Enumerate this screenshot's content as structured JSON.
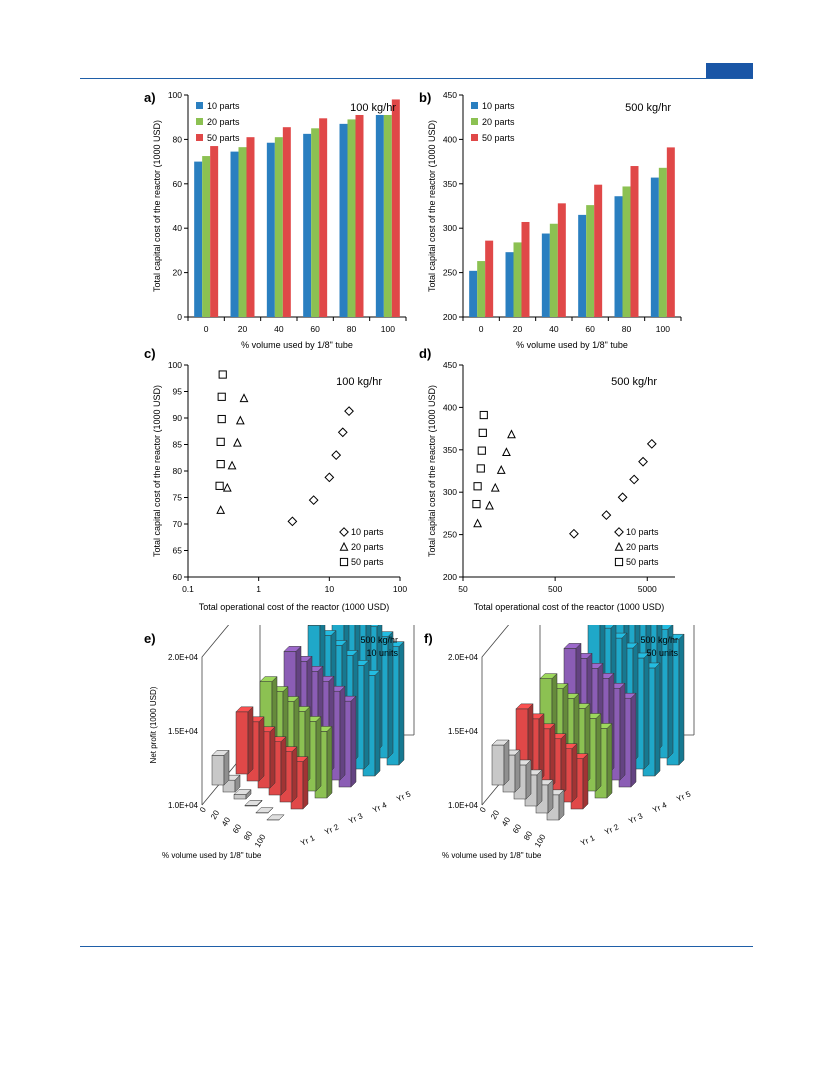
{
  "colors": {
    "blue": "#2a7fc0",
    "green": "#8cc152",
    "red": "#e04848",
    "rule": "#1f5fa8",
    "purple": "#8b5db5",
    "cyan": "#1fa8c9",
    "gray": "#c8c8c8"
  },
  "panel_labels": [
    "a)",
    "b)",
    "c)",
    "d)",
    "e)",
    "f)"
  ],
  "chart_data": [
    {
      "id": "a",
      "type": "bar",
      "note": "100 kg/hr",
      "xlabel": "% volume used by 1/8\" tube",
      "ylabel": "Total capital cost of the reactor (1000 USD)",
      "categories": [
        "0",
        "20",
        "40",
        "60",
        "80",
        "100"
      ],
      "ylim": [
        0,
        100
      ],
      "yticks": [
        0,
        20,
        40,
        60,
        80,
        100
      ],
      "legend_position": "top-left",
      "series": [
        {
          "name": "10 parts",
          "color": "#2a7fc0",
          "values": [
            70,
            74.5,
            78.5,
            82.5,
            87,
            91
          ]
        },
        {
          "name": "20 parts",
          "color": "#8cc152",
          "values": [
            72.5,
            76.5,
            81,
            85,
            89,
            91
          ]
        },
        {
          "name": "50 parts",
          "color": "#e04848",
          "values": [
            77,
            81,
            85.5,
            89.5,
            91,
            98
          ]
        }
      ]
    },
    {
      "id": "b",
      "type": "bar",
      "note": "500 kg/hr",
      "xlabel": "% volume used by 1/8\" tube",
      "ylabel": "Total capital cost of the reactor (1000 USD)",
      "categories": [
        "0",
        "20",
        "40",
        "60",
        "80",
        "100"
      ],
      "ylim": [
        200,
        450
      ],
      "yticks": [
        200,
        250,
        300,
        350,
        400,
        450
      ],
      "legend_position": "top-left",
      "series": [
        {
          "name": "10 parts",
          "color": "#2a7fc0",
          "values": [
            252,
            273,
            294,
            315,
            336,
            357
          ]
        },
        {
          "name": "20 parts",
          "color": "#8cc152",
          "values": [
            263,
            284,
            305,
            326,
            347,
            368
          ]
        },
        {
          "name": "50 parts",
          "color": "#e04848",
          "values": [
            286,
            307,
            328,
            349,
            370,
            391
          ]
        }
      ]
    },
    {
      "id": "c",
      "type": "scatter",
      "note": "100 kg/hr",
      "xlabel": "Total operational cost of the reactor (1000 USD)",
      "ylabel": "Total capital cost of the reactor (1000 USD)",
      "xscale": "log",
      "xlim": [
        0.1,
        100
      ],
      "xticks": [
        0.1,
        1,
        10,
        100
      ],
      "xticklabels": [
        "0.1",
        "1",
        "10",
        "100"
      ],
      "ylim": [
        60,
        100
      ],
      "yticks": [
        60,
        65,
        70,
        75,
        80,
        85,
        90,
        95,
        100
      ],
      "legend_position": "bottom-right",
      "series": [
        {
          "name": "10 parts",
          "marker": "diamond",
          "x": [
            3.0,
            6.0,
            10.0,
            12.5,
            15.5,
            19.0
          ],
          "y": [
            70.5,
            74.5,
            78.8,
            83.0,
            87.3,
            91.3
          ]
        },
        {
          "name": "20 parts",
          "marker": "triangle",
          "x": [
            0.29,
            0.36,
            0.42,
            0.5,
            0.55,
            0.62
          ],
          "y": [
            72.6,
            76.8,
            81.0,
            85.3,
            89.5,
            93.7
          ]
        },
        {
          "name": "50 parts",
          "marker": "square",
          "x": [
            0.28,
            0.29,
            0.29,
            0.3,
            0.3,
            0.31
          ],
          "y": [
            77.2,
            81.3,
            85.5,
            89.8,
            94.0,
            98.2
          ]
        }
      ]
    },
    {
      "id": "d",
      "type": "scatter",
      "note": "500 kg/hr",
      "xlabel": "Total operational cost of the reactor (1000 USD)",
      "ylabel": "Total capital cost of the reactor (1000 USD)",
      "xscale": "log",
      "xlim": [
        50,
        10000
      ],
      "xticks": [
        50,
        500,
        5000
      ],
      "xticklabels": [
        "50",
        "500",
        "5000"
      ],
      "ylim": [
        200,
        450
      ],
      "yticks": [
        200,
        250,
        300,
        350,
        400,
        450
      ],
      "legend_position": "bottom-right",
      "series": [
        {
          "name": "10 parts",
          "marker": "diamond",
          "x": [
            800,
            1800,
            2700,
            3600,
            4500,
            5600
          ],
          "y": [
            251,
            273,
            294,
            315,
            336,
            357
          ]
        },
        {
          "name": "20 parts",
          "marker": "triangle",
          "x": [
            72,
            97,
            112,
            130,
            148,
            168
          ],
          "y": [
            263,
            284,
            305,
            326,
            347,
            368
          ]
        },
        {
          "name": "50 parts",
          "marker": "square",
          "x": [
            70,
            72,
            78,
            80,
            82,
            84
          ],
          "y": [
            286,
            307,
            328,
            349,
            370,
            391
          ]
        }
      ]
    },
    {
      "id": "e",
      "type": "bar",
      "note_lines": [
        "500 kg/hr",
        "10 units"
      ],
      "xlabel": "% volume used by 1/8\" tube",
      "ylabel": "Net profit (1000 USD)",
      "zticklabels": [
        "1.0E+04",
        "1.5E+04",
        "2.0E+04"
      ],
      "zlim": [
        10000,
        20000
      ],
      "categories": [
        "0",
        "20",
        "40",
        "60",
        "80",
        "100"
      ],
      "series": [
        {
          "name": "Gray (no label)",
          "label": "",
          "values": [
            12000,
            10800,
            10300,
            10050,
            10020,
            10010
          ]
        },
        {
          "name": "Yr 1",
          "values": [
            14200,
            14000,
            13800,
            13600,
            13400,
            13200
          ]
        },
        {
          "name": "Yr 2",
          "values": [
            15500,
            15300,
            15100,
            14900,
            14700,
            14500
          ]
        },
        {
          "name": "Yr 3",
          "values": [
            16800,
            16600,
            16400,
            16200,
            16000,
            15800
          ]
        },
        {
          "name": "Yr 4",
          "values": [
            17800,
            17600,
            17400,
            17200,
            17000,
            16800
          ]
        },
        {
          "name": "Yr 5",
          "values": [
            19000,
            18800,
            18600,
            18400,
            18200,
            18000
          ]
        }
      ],
      "row_labels": [
        "Yr 1",
        "Yr 2",
        "Yr 3",
        "Yr 4",
        "Yr 5"
      ]
    },
    {
      "id": "f",
      "type": "bar",
      "note_lines": [
        "500 kg/hr",
        "50 units"
      ],
      "xlabel": "% volume used by 1/8\" tube",
      "zticklabels": [
        "1.0E+04",
        "1.5E+04",
        "2.0E+04"
      ],
      "zlim": [
        10000,
        20000
      ],
      "categories": [
        "0",
        "20",
        "40",
        "60",
        "80",
        "100"
      ],
      "series": [
        {
          "name": "Gray (no label)",
          "label": "",
          "values": [
            12700,
            12500,
            12300,
            12100,
            11900,
            11700
          ]
        },
        {
          "name": "Yr 1",
          "values": [
            14400,
            14200,
            14000,
            13800,
            13600,
            13400
          ]
        },
        {
          "name": "Yr 2",
          "values": [
            15700,
            15500,
            15300,
            15100,
            14900,
            14700
          ]
        },
        {
          "name": "Yr 3",
          "values": [
            17000,
            16800,
            16600,
            16400,
            16200,
            16000
          ]
        },
        {
          "name": "Yr 4",
          "values": [
            18300,
            18100,
            17900,
            17700,
            17500,
            17300
          ]
        },
        {
          "name": "Yr 5",
          "values": [
            19500,
            19300,
            19100,
            18900,
            18700,
            18500
          ]
        }
      ],
      "row_labels": [
        "Yr 1",
        "Yr 2",
        "Yr 3",
        "Yr 4",
        "Yr 5"
      ]
    }
  ]
}
